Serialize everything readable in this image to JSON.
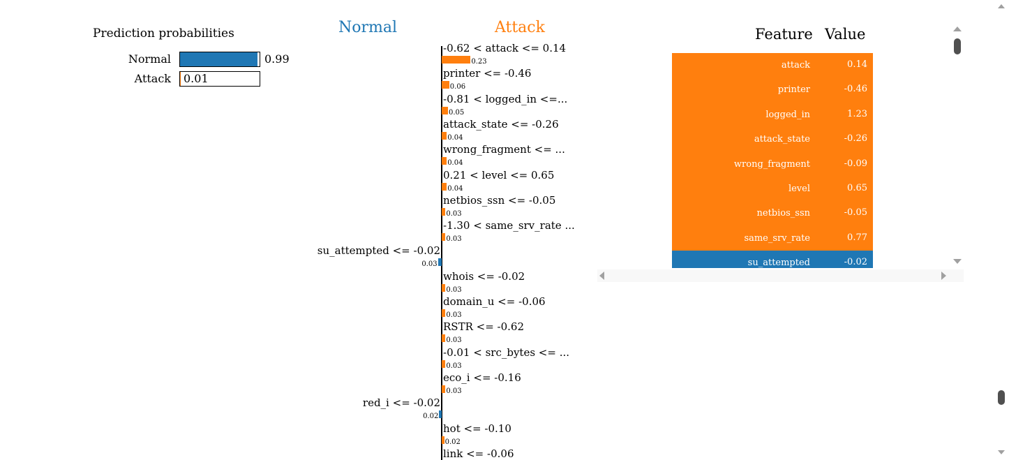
{
  "prediction": {
    "title": "Prediction probabilities",
    "rows": [
      {
        "label": "Normal",
        "value": 0.99,
        "value_text": "0.99",
        "color": "#1f77b4"
      },
      {
        "label": "Attack",
        "value": 0.01,
        "value_text": "0.01",
        "color": "#ff7f0e"
      }
    ]
  },
  "classes": {
    "negative": "Normal",
    "positive": "Attack",
    "negative_color": "#1f77b4",
    "positive_color": "#ff7f0e"
  },
  "chart_data": {
    "type": "bar",
    "orientation": "horizontal",
    "categories": [
      "-0.62 < attack <= 0.14",
      "printer <= -0.46",
      "-0.81 < logged_in <=...",
      "attack_state <= -0.26",
      "wrong_fragment <= ...",
      "0.21 < level <= 0.65",
      "netbios_ssn <= -0.05",
      "-1.30 < same_srv_rate ...",
      "su_attempted <= -0.02",
      "whois <= -0.02",
      "domain_u <= -0.06",
      "RSTR <= -0.62",
      "-0.01 < src_bytes <= ...",
      "eco_i <= -0.16",
      "red_i <= -0.02",
      "hot <= -0.10",
      "link <= -0.06"
    ],
    "series": [
      {
        "name": "Attack",
        "values": [
          0.23,
          0.06,
          0.05,
          0.04,
          0.04,
          0.04,
          0.03,
          0.03,
          0.03,
          0.03,
          0.03,
          0.03,
          0.03,
          0.03,
          0.02,
          0.02,
          null
        ]
      }
    ],
    "sides": [
      "positive",
      "positive",
      "positive",
      "positive",
      "positive",
      "positive",
      "positive",
      "positive",
      "negative",
      "positive",
      "positive",
      "positive",
      "positive",
      "positive",
      "negative",
      "positive",
      "positive"
    ],
    "value_labels": [
      "0.23",
      "0.06",
      "0.05",
      "0.04",
      "0.04",
      "0.04",
      "0.03",
      "0.03",
      "0.03",
      "0.03",
      "0.03",
      "0.03",
      "0.03",
      "0.03",
      "0.02",
      "0.02",
      ""
    ]
  },
  "table": {
    "headers": [
      "Feature",
      "Value"
    ],
    "rows": [
      {
        "feature": "attack",
        "value": "0.14",
        "side": "positive"
      },
      {
        "feature": "printer",
        "value": "-0.46",
        "side": "positive"
      },
      {
        "feature": "logged_in",
        "value": "1.23",
        "side": "positive"
      },
      {
        "feature": "attack_state",
        "value": "-0.26",
        "side": "positive"
      },
      {
        "feature": "wrong_fragment",
        "value": "-0.09",
        "side": "positive"
      },
      {
        "feature": "level",
        "value": "0.65",
        "side": "positive"
      },
      {
        "feature": "netbios_ssn",
        "value": "-0.05",
        "side": "positive"
      },
      {
        "feature": "same_srv_rate",
        "value": "0.77",
        "side": "positive"
      },
      {
        "feature": "su_attempted",
        "value": "-0.02",
        "side": "negative"
      }
    ]
  }
}
